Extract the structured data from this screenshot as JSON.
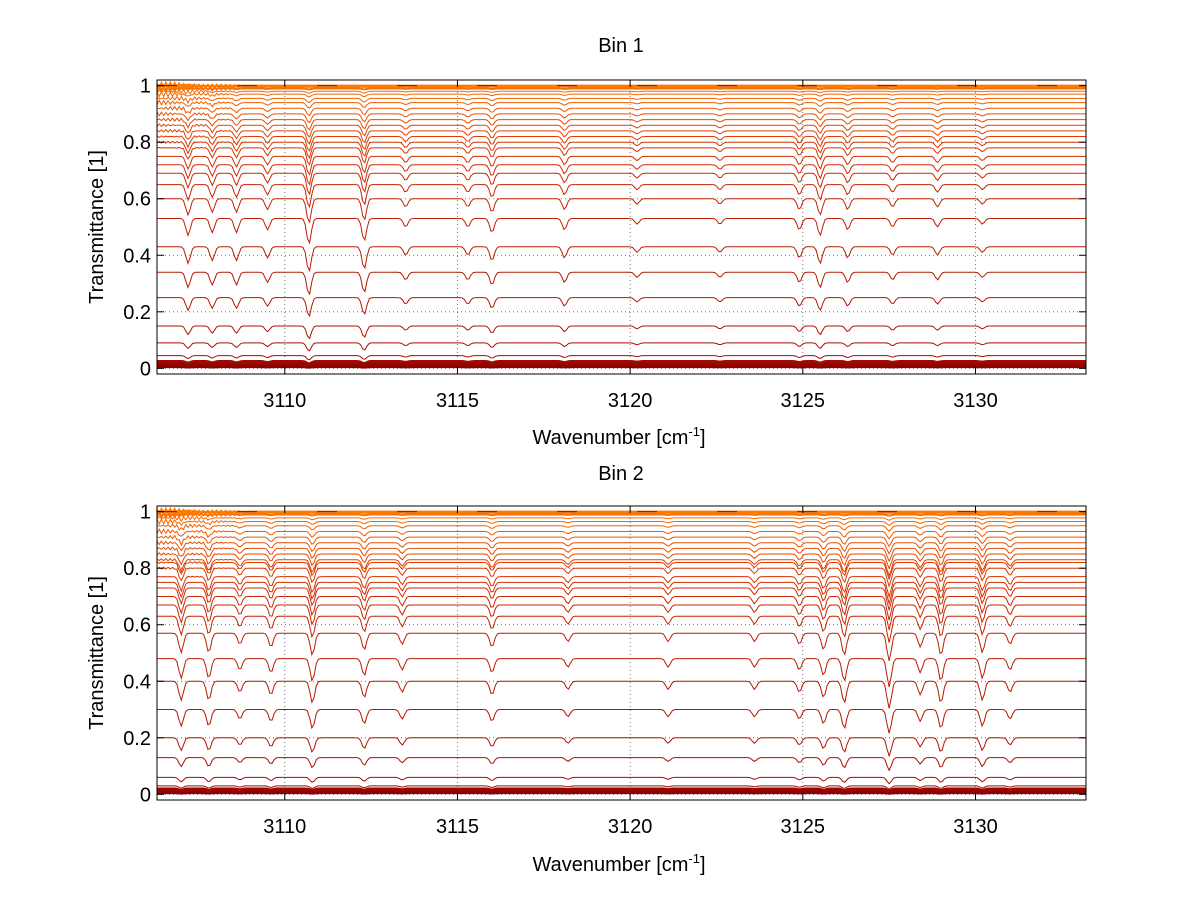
{
  "chart_data": [
    {
      "type": "line",
      "title": "Bin 1",
      "xlabel": "Wavenumber [cm",
      "xlabel_superscript": "-1",
      "xlabel_suffix": "]",
      "ylabel": "Transmittance [1]",
      "xlim": [
        3106.3,
        3133.2
      ],
      "ylim": [
        -0.02,
        1.02
      ],
      "xticks": [
        3110,
        3115,
        3120,
        3125,
        3130
      ],
      "xtick_labels": [
        "3110",
        "3115",
        "3120",
        "3125",
        "3130"
      ],
      "yticks": [
        0,
        0.2,
        0.4,
        0.6,
        0.8,
        1
      ],
      "ytick_labels": [
        "0",
        "0.2",
        "0.4",
        "0.6",
        "0.8",
        "1"
      ],
      "grid": "dotted",
      "series_count": 32,
      "series_baselines": [
        0.005,
        0.01,
        0.015,
        0.02,
        0.025,
        0.045,
        0.09,
        0.15,
        0.25,
        0.34,
        0.43,
        0.53,
        0.6,
        0.65,
        0.69,
        0.72,
        0.75,
        0.78,
        0.8,
        0.82,
        0.84,
        0.86,
        0.88,
        0.9,
        0.92,
        0.94,
        0.955,
        0.97,
        0.98,
        0.99,
        0.997,
        1.0
      ],
      "absorption_lines": [
        {
          "x": 3107.2,
          "depth": 0.06
        },
        {
          "x": 3107.9,
          "depth": 0.05
        },
        {
          "x": 3108.6,
          "depth": 0.05
        },
        {
          "x": 3109.5,
          "depth": 0.04
        },
        {
          "x": 3110.7,
          "depth": 0.09
        },
        {
          "x": 3112.3,
          "depth": 0.08
        },
        {
          "x": 3113.5,
          "depth": 0.03
        },
        {
          "x": 3115.3,
          "depth": 0.03
        },
        {
          "x": 3116.0,
          "depth": 0.05
        },
        {
          "x": 3118.1,
          "depth": 0.04
        },
        {
          "x": 3120.2,
          "depth": 0.02
        },
        {
          "x": 3122.6,
          "depth": 0.02
        },
        {
          "x": 3124.9,
          "depth": 0.04
        },
        {
          "x": 3125.5,
          "depth": 0.06
        },
        {
          "x": 3126.3,
          "depth": 0.04
        },
        {
          "x": 3127.6,
          "depth": 0.03
        },
        {
          "x": 3128.9,
          "depth": 0.03
        },
        {
          "x": 3130.2,
          "depth": 0.02
        }
      ],
      "colors": {
        "low": "#8b0000",
        "mid": "#d42a00",
        "high": "#ff7b00",
        "extra": "#1a2bd6"
      }
    },
    {
      "type": "line",
      "title": "Bin 2",
      "xlabel": "Wavenumber [cm",
      "xlabel_superscript": "-1",
      "xlabel_suffix": "]",
      "ylabel": "Transmittance [1]",
      "xlim": [
        3106.3,
        3133.2
      ],
      "ylim": [
        -0.02,
        1.02
      ],
      "xticks": [
        3110,
        3115,
        3120,
        3125,
        3130
      ],
      "xtick_labels": [
        "3110",
        "3115",
        "3120",
        "3125",
        "3130"
      ],
      "yticks": [
        0,
        0.2,
        0.4,
        0.6,
        0.8,
        1
      ],
      "ytick_labels": [
        "0",
        "0.2",
        "0.4",
        "0.6",
        "0.8",
        "1"
      ],
      "grid": "dotted",
      "series_count": 32,
      "series_baselines": [
        0.005,
        0.01,
        0.015,
        0.02,
        0.03,
        0.06,
        0.13,
        0.2,
        0.3,
        0.4,
        0.48,
        0.57,
        0.63,
        0.67,
        0.7,
        0.73,
        0.75,
        0.77,
        0.8,
        0.82,
        0.83,
        0.85,
        0.87,
        0.89,
        0.91,
        0.93,
        0.95,
        0.965,
        0.978,
        0.99,
        0.997,
        1.0
      ],
      "absorption_lines": [
        {
          "x": 3107.0,
          "depth": 0.07
        },
        {
          "x": 3107.8,
          "depth": 0.07
        },
        {
          "x": 3108.7,
          "depth": 0.04
        },
        {
          "x": 3109.6,
          "depth": 0.05
        },
        {
          "x": 3110.8,
          "depth": 0.08
        },
        {
          "x": 3112.3,
          "depth": 0.06
        },
        {
          "x": 3113.4,
          "depth": 0.04
        },
        {
          "x": 3116.0,
          "depth": 0.05
        },
        {
          "x": 3118.2,
          "depth": 0.03
        },
        {
          "x": 3121.1,
          "depth": 0.03
        },
        {
          "x": 3123.6,
          "depth": 0.03
        },
        {
          "x": 3124.9,
          "depth": 0.04
        },
        {
          "x": 3125.6,
          "depth": 0.06
        },
        {
          "x": 3126.2,
          "depth": 0.08
        },
        {
          "x": 3127.5,
          "depth": 0.1
        },
        {
          "x": 3128.4,
          "depth": 0.05
        },
        {
          "x": 3129.0,
          "depth": 0.08
        },
        {
          "x": 3130.2,
          "depth": 0.07
        },
        {
          "x": 3131.0,
          "depth": 0.04
        }
      ],
      "colors": {
        "low": "#8b0000",
        "mid": "#d42a00",
        "high": "#ff7b00",
        "extra": "#1a2bd6"
      }
    }
  ]
}
